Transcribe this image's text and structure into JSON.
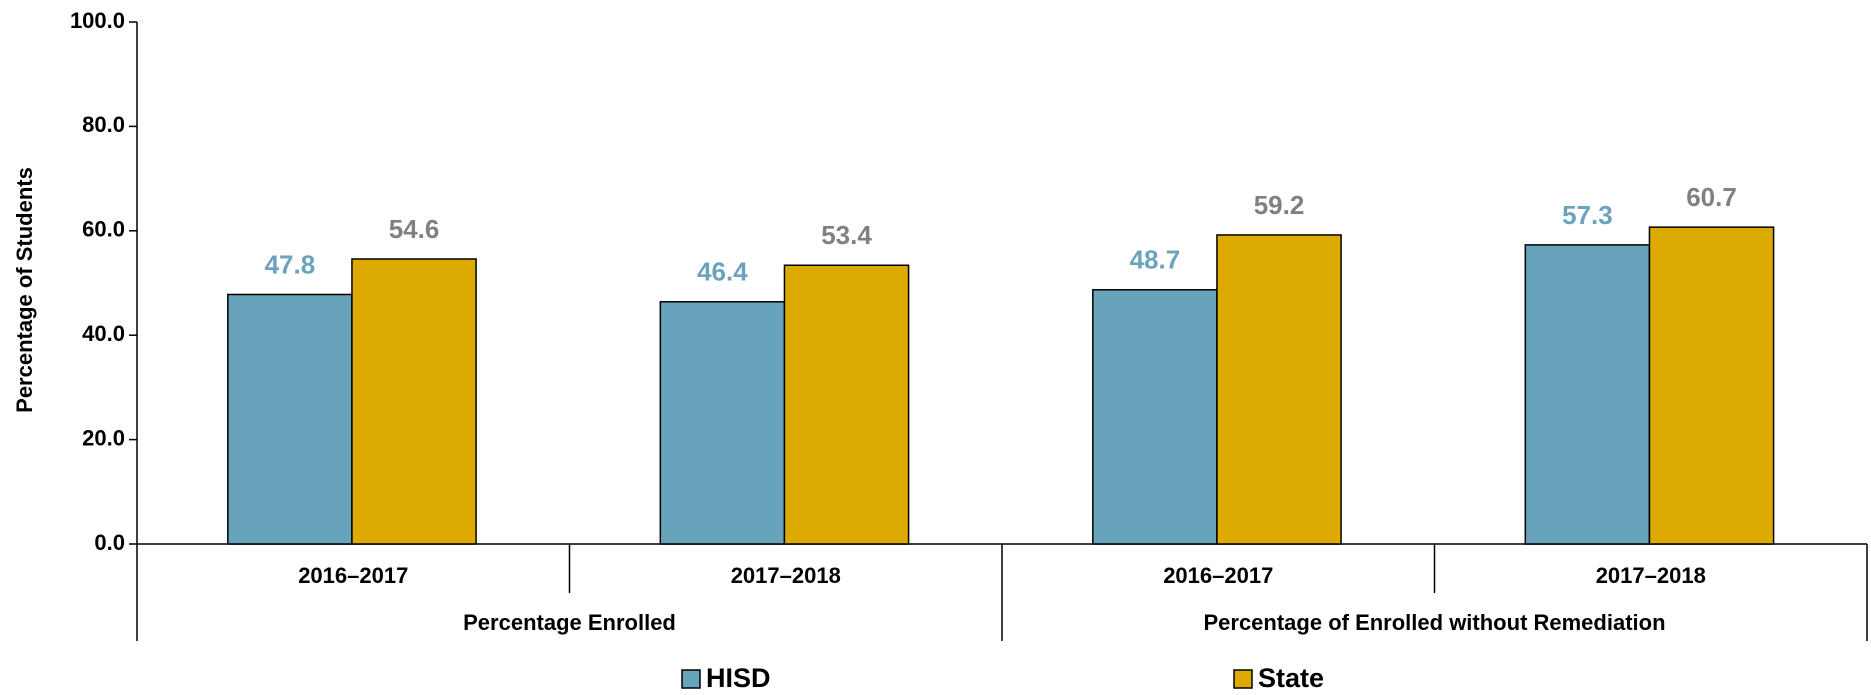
{
  "chart_data": {
    "type": "bar",
    "y_label": "Percentage of Students",
    "categories": [
      "2016–2017",
      "2017–2018",
      "2016–2017",
      "2017–2018"
    ],
    "groups": [
      "Percentage Enrolled",
      "Percentage of Enrolled without Remediation"
    ],
    "series": [
      {
        "name": "HISD",
        "color": "#67a3ba",
        "label_color": "#6aa3bb",
        "values": [
          47.8,
          46.4,
          48.7,
          57.3
        ]
      },
      {
        "name": "State",
        "color": "#dcaa00",
        "label_color": "#808080",
        "values": [
          54.6,
          53.4,
          59.2,
          60.7
        ]
      }
    ],
    "ylim": [
      0,
      100
    ],
    "yticks": [
      {
        "value": 0,
        "label": "0.0"
      },
      {
        "value": 20,
        "label": "20.0"
      },
      {
        "value": 40,
        "label": "40.0"
      },
      {
        "value": 60,
        "label": "60.0"
      },
      {
        "value": 80,
        "label": "80.0"
      },
      {
        "value": 100,
        "label": "100.0"
      }
    ],
    "legend": "bottom"
  }
}
